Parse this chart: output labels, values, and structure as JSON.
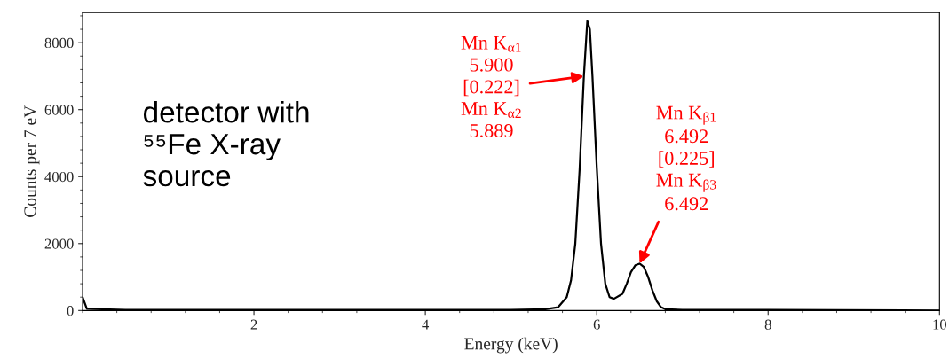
{
  "chart_data": {
    "type": "line",
    "xlabel": "Energy (keV)",
    "ylabel": "Counts per 7 eV",
    "x": [
      0.0,
      0.05,
      0.5,
      2,
      4,
      4.5,
      5.0,
      5.4,
      5.55,
      5.65,
      5.7,
      5.75,
      5.8,
      5.85,
      5.89,
      5.92,
      5.95,
      6.0,
      6.05,
      6.1,
      6.15,
      6.2,
      6.3,
      6.35,
      6.4,
      6.45,
      6.5,
      6.55,
      6.6,
      6.65,
      6.7,
      6.75,
      6.8,
      7.0,
      8,
      10
    ],
    "series": [
      {
        "color": "#000000",
        "values": [
          400,
          50,
          20,
          20,
          20,
          20,
          20,
          40,
          100,
          400,
          900,
          2000,
          4200,
          7000,
          8650,
          8400,
          7000,
          4300,
          2000,
          800,
          400,
          350,
          500,
          800,
          1150,
          1350,
          1400,
          1300,
          1000,
          600,
          280,
          100,
          40,
          20,
          20,
          0
        ]
      }
    ],
    "xlim": [
      0,
      10
    ],
    "ylim": [
      0,
      8900
    ],
    "xticks": [
      2,
      4,
      6,
      8,
      10
    ],
    "yticks": [
      0,
      2000,
      4000,
      6000,
      8000
    ],
    "grid": false,
    "marker": "none",
    "line_style": "solid",
    "annotations": [
      {
        "text": "Mn K$_{α1}$\n5.900\n[0.222]\nMn K$_{α2}$\n5.889",
        "x": 5.85,
        "y": 7000
      },
      {
        "text": "Mn K$_{β1}$\n6.492\n[0.225]\nMn K$_{β3}$\n6.492",
        "x": 6.5,
        "y": 1400
      },
      "detector with\n⁵⁵Fe X-ray\nsource"
    ]
  }
}
